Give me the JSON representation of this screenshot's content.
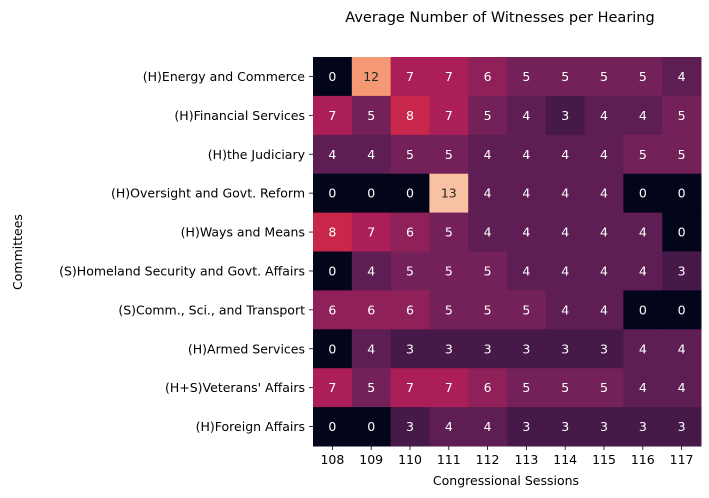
{
  "chart_data": {
    "type": "heatmap",
    "title": "Average Number of Witnesses per Hearing",
    "xlabel": "Congressional Sessions",
    "ylabel": "Committees",
    "x": [
      "108",
      "109",
      "110",
      "111",
      "112",
      "113",
      "114",
      "115",
      "116",
      "117"
    ],
    "y": [
      "(H)Energy and Commerce",
      "(H)Financial Services",
      "(H)the Judiciary",
      "(H)Oversight and Govt. Reform",
      "(H)Ways and Means",
      "(S)Homeland Security and Govt. Affairs",
      "(S)Comm., Sci., and Transport",
      "(H)Armed Services",
      "(H+S)Veterans' Affairs",
      "(H)Foreign Affairs"
    ],
    "values": [
      [
        0,
        12,
        7,
        7,
        6,
        5,
        5,
        5,
        5,
        4
      ],
      [
        7,
        5,
        8,
        7,
        5,
        4,
        3,
        4,
        4,
        5
      ],
      [
        4,
        4,
        5,
        5,
        4,
        4,
        4,
        4,
        5,
        5
      ],
      [
        0,
        0,
        0,
        13,
        4,
        4,
        4,
        4,
        0,
        0
      ],
      [
        8,
        7,
        6,
        5,
        4,
        4,
        4,
        4,
        4,
        0
      ],
      [
        0,
        4,
        5,
        5,
        5,
        4,
        4,
        4,
        4,
        3
      ],
      [
        6,
        6,
        6,
        5,
        5,
        5,
        4,
        4,
        0,
        0
      ],
      [
        0,
        4,
        3,
        3,
        3,
        3,
        3,
        3,
        4,
        4
      ],
      [
        7,
        5,
        7,
        7,
        6,
        5,
        5,
        5,
        4,
        4
      ],
      [
        0,
        0,
        3,
        4,
        4,
        3,
        3,
        3,
        3,
        3
      ]
    ],
    "display_values": [
      [
        0,
        12,
        7,
        7,
        6,
        5,
        5,
        5,
        5,
        4
      ],
      [
        7,
        5,
        8,
        7,
        5,
        4,
        3,
        4,
        4,
        5
      ],
      [
        4,
        4,
        5,
        5,
        4,
        4,
        4,
        4,
        5,
        5
      ],
      [
        0,
        0,
        0,
        13,
        4,
        4,
        4,
        4,
        0,
        0
      ],
      [
        8,
        7,
        6,
        5,
        4,
        4,
        4,
        4,
        4,
        0
      ],
      [
        0,
        4,
        5,
        5,
        5,
        4,
        4,
        4,
        4,
        3
      ],
      [
        6,
        6,
        6,
        5,
        5,
        5,
        4,
        4,
        0,
        0
      ],
      [
        0,
        4,
        3,
        3,
        3,
        3,
        3,
        3,
        4,
        4
      ],
      [
        7,
        5,
        7,
        7,
        6,
        5,
        5,
        5,
        4,
        4
      ],
      [
        0,
        0,
        3,
        4,
        4,
        3,
        3,
        3,
        3,
        3
      ]
    ],
    "vmin": 0,
    "vmax": 14,
    "colormap": "rocket",
    "colorbar": false
  }
}
